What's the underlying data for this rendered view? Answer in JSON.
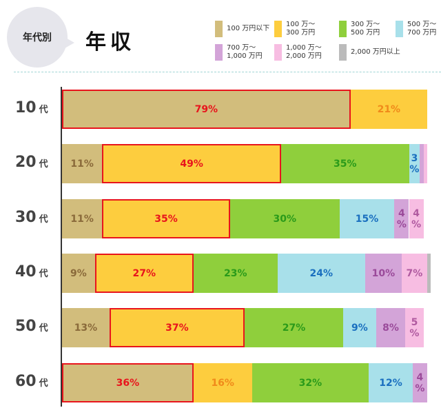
{
  "header": {
    "badge": "年代別",
    "title": "年収"
  },
  "legend": [
    {
      "label": "100 万円以下",
      "color": "#d2bd7c"
    },
    {
      "label": "100 万～\n300 万円",
      "color": "#fdcd3e"
    },
    {
      "label": "300 万～\n500 万円",
      "color": "#8fcf3c"
    },
    {
      "label": "500 万～\n700 万円",
      "color": "#a8e0ea"
    },
    {
      "label": "700 万～\n1,000 万円",
      "color": "#d3a4d8"
    },
    {
      "label": "1,000 万～\n2,000 万円",
      "color": "#f7bde2"
    },
    {
      "label": "2,000 万円以上",
      "color": "#bbbbbb"
    }
  ],
  "label_colors": [
    "#8a6a3a",
    "#f08a1a",
    "#2a9a1a",
    "#1a6fbf",
    "#9a4a9a",
    "#b05aa0",
    "#777777"
  ],
  "chart_data": {
    "type": "bar",
    "orientation": "horizontal-stacked",
    "unit": "%",
    "categories": [
      "10",
      "20",
      "30",
      "40",
      "50",
      "60"
    ],
    "category_suffix": "代",
    "series_names": [
      "100 万円以下",
      "100 万～300 万円",
      "300 万～500 万円",
      "500 万～700 万円",
      "700 万～1,000 万円",
      "1,000 万～2,000 万円",
      "2,000 万円以上"
    ],
    "rows": [
      {
        "values": [
          79,
          21,
          0,
          0,
          0,
          0,
          0
        ],
        "labels": [
          "79%",
          "21%",
          "",
          "",
          "",
          "",
          ""
        ],
        "highlight": 0
      },
      {
        "values": [
          11,
          49,
          35,
          3,
          1,
          1,
          0
        ],
        "labels": [
          "11%",
          "49%",
          "35%",
          "3\n%",
          "",
          "",
          ""
        ],
        "highlight": 1
      },
      {
        "values": [
          11,
          35,
          30,
          15,
          4,
          4,
          0
        ],
        "labels": [
          "11%",
          "35%",
          "30%",
          "15%",
          "4\n%",
          "4\n%",
          ""
        ],
        "highlight": 1
      },
      {
        "values": [
          9,
          27,
          23,
          24,
          10,
          7,
          1
        ],
        "labels": [
          "9%",
          "27%",
          "23%",
          "24%",
          "10%",
          "7%",
          ""
        ],
        "highlight": 1
      },
      {
        "values": [
          13,
          37,
          27,
          9,
          8,
          5,
          0
        ],
        "labels": [
          "13%",
          "37%",
          "27%",
          "9%",
          "8%",
          "5\n%",
          ""
        ],
        "highlight": 1
      },
      {
        "values": [
          36,
          16,
          32,
          12,
          4,
          0,
          0
        ],
        "labels": [
          "36%",
          "16%",
          "32%",
          "12%",
          "4\n%",
          "",
          ""
        ],
        "highlight": 0
      }
    ]
  }
}
